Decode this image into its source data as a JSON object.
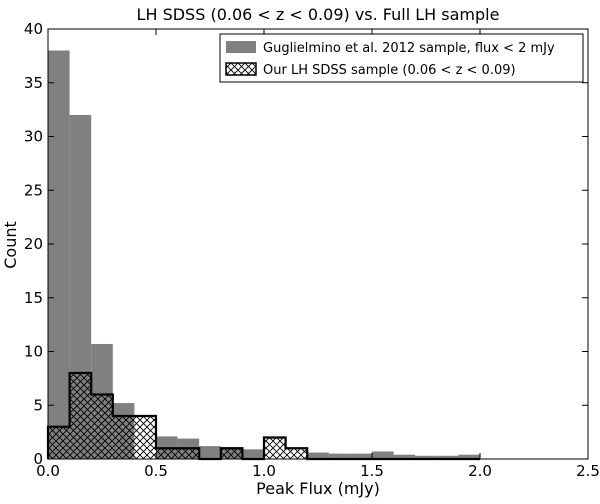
{
  "chart_data": {
    "type": "bar",
    "title": "LH SDSS (0.06 < z < 0.09) vs. Full LH sample",
    "xlabel": "Peak Flux (mJy)",
    "ylabel": "Count",
    "xlim": [
      0.0,
      2.5
    ],
    "ylim": [
      0,
      40
    ],
    "x_ticks": [
      "0.0",
      "0.5",
      "1.0",
      "1.5",
      "2.0",
      "2.5"
    ],
    "x_tick_values": [
      0.0,
      0.5,
      1.0,
      1.5,
      2.0,
      2.5
    ],
    "y_ticks": [
      "0",
      "5",
      "10",
      "15",
      "20",
      "25",
      "30",
      "35",
      "40"
    ],
    "y_tick_values": [
      0,
      5,
      10,
      15,
      20,
      25,
      30,
      35,
      40
    ],
    "grid": false,
    "legend_position": "top-right",
    "bin_edges": [
      0.0,
      0.1,
      0.2,
      0.3,
      0.4,
      0.5,
      0.6,
      0.7,
      0.8,
      0.9,
      1.0,
      1.1,
      1.2,
      1.3,
      1.4,
      1.5,
      1.6,
      1.7,
      1.8,
      1.9,
      2.0
    ],
    "series": [
      {
        "name": "Guglielmino et al. 2012 sample, flux < 2 mJy",
        "style": "filled",
        "color": "#808080",
        "values": [
          38,
          32,
          10.7,
          5.2,
          3.1,
          2.1,
          1.9,
          1.2,
          1.1,
          0.9,
          0.8,
          0.7,
          0.6,
          0.5,
          0.5,
          0.7,
          0.4,
          0.3,
          0.3,
          0.4
        ]
      },
      {
        "name": "Our LH SDSS sample (0.06 < z < 0.09)",
        "style": "hatched",
        "color": "#000000",
        "values": [
          3,
          8,
          6,
          4,
          4,
          1,
          1,
          0,
          1,
          0,
          2,
          1,
          0,
          0,
          0,
          0,
          0,
          0,
          0,
          0
        ]
      }
    ]
  }
}
